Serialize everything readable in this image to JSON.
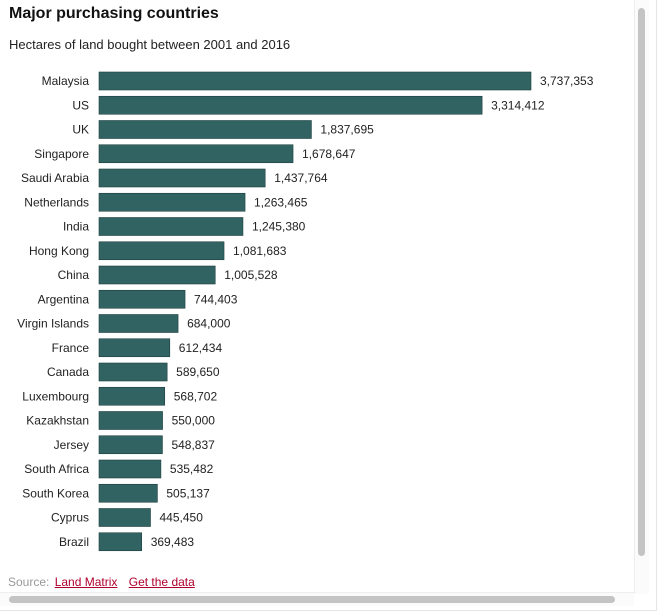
{
  "header": {
    "title": "Major purchasing countries",
    "subtitle": "Hectares of land bought between 2001 and 2016"
  },
  "footer": {
    "source_label": "Source:",
    "source_link": "Land Matrix",
    "data_link": "Get the data"
  },
  "colors": {
    "bar": "#326363",
    "bar_border": "#1e3f3f",
    "link": "#b0002c"
  },
  "chart_data": {
    "type": "bar",
    "orientation": "horizontal",
    "title": "Major purchasing countries",
    "subtitle": "Hectares of land bought between 2001 and 2016",
    "categories": [
      "Malaysia",
      "US",
      "UK",
      "Singapore",
      "Saudi Arabia",
      "Netherlands",
      "India",
      "Hong Kong",
      "China",
      "Argentina",
      "Virgin Islands",
      "France",
      "Canada",
      "Luxembourg",
      "Kazakhstan",
      "Jersey",
      "South Africa",
      "South Korea",
      "Cyprus",
      "Brazil"
    ],
    "values": [
      3737353,
      3314412,
      1837695,
      1678647,
      1437764,
      1263465,
      1245380,
      1081683,
      1005528,
      744403,
      684000,
      612434,
      589650,
      568702,
      550000,
      548837,
      535482,
      505137,
      445450,
      369483
    ],
    "value_labels": [
      "3,737,353",
      "3,314,412",
      "1,837,695",
      "1,678,647",
      "1,437,764",
      "1,263,465",
      "1,245,380",
      "1,081,683",
      "1,005,528",
      "744,403",
      "684,000",
      "612,434",
      "589,650",
      "568,702",
      "550,000",
      "548,837",
      "535,482",
      "505,137",
      "445,450",
      "369,483"
    ],
    "xlim": [
      0,
      3737353
    ],
    "grid": false,
    "legend": "none"
  }
}
